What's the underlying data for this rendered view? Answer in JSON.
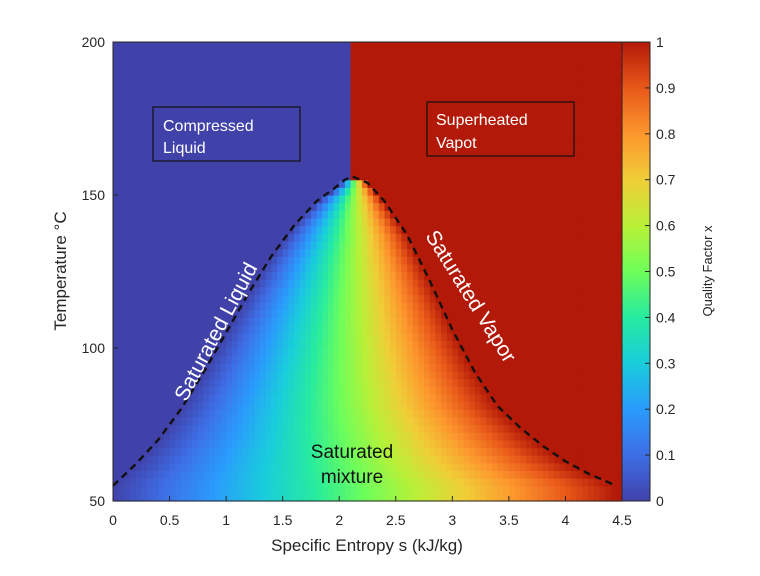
{
  "chart_data": {
    "type": "heatmap",
    "title": "",
    "xlabel": "Specific Entropy s (kJ/kg)",
    "ylabel": "Temperature °C",
    "xlim": [
      0,
      4.5
    ],
    "ylim": [
      50,
      200
    ],
    "xticks": [
      "0",
      "0.5",
      "1",
      "1.5",
      "2",
      "2.5",
      "3",
      "3.5",
      "4",
      "4.5"
    ],
    "yticks": [
      "50",
      "100",
      "150",
      "200"
    ],
    "colorbar": {
      "label": "Quality Factor x",
      "range": [
        0,
        1
      ],
      "ticks": [
        "0",
        "0.1",
        "0.2",
        "0.3",
        "0.4",
        "0.5",
        "0.6",
        "0.7",
        "0.8",
        "0.9",
        "1"
      ],
      "colormap": "turbo"
    },
    "critical_point": {
      "s": 2.12,
      "T": 156
    },
    "saturated_liquid_curve": {
      "s": [
        0.0,
        0.2,
        0.4,
        0.6,
        0.8,
        1.0,
        1.2,
        1.4,
        1.6,
        1.8,
        1.95,
        2.05,
        2.12
      ],
      "T": [
        55,
        62,
        70,
        80,
        92,
        105,
        118,
        130,
        140,
        148,
        152,
        155,
        156
      ]
    },
    "saturated_vapor_curve": {
      "s": [
        2.12,
        2.25,
        2.4,
        2.6,
        2.8,
        3.0,
        3.2,
        3.4,
        3.6,
        3.8,
        4.0,
        4.2,
        4.45
      ],
      "T": [
        156,
        154,
        148,
        137,
        122,
        106,
        92,
        81,
        74,
        68,
        63,
        59,
        55
      ]
    },
    "regions": [
      {
        "name": "Compressed Liquid",
        "lines": [
          "Compressed",
          "Liquid"
        ],
        "quality": 0
      },
      {
        "name": "Superheated Vapot",
        "lines": [
          "Superheated",
          "Vapot"
        ],
        "quality": 1
      },
      {
        "name": "Saturated mixture",
        "lines": [
          "Saturated",
          "mixture"
        ]
      }
    ],
    "curve_labels": [
      "Saturated Liquid",
      "Saturated Vapor"
    ],
    "grid": false,
    "legend": "none"
  }
}
